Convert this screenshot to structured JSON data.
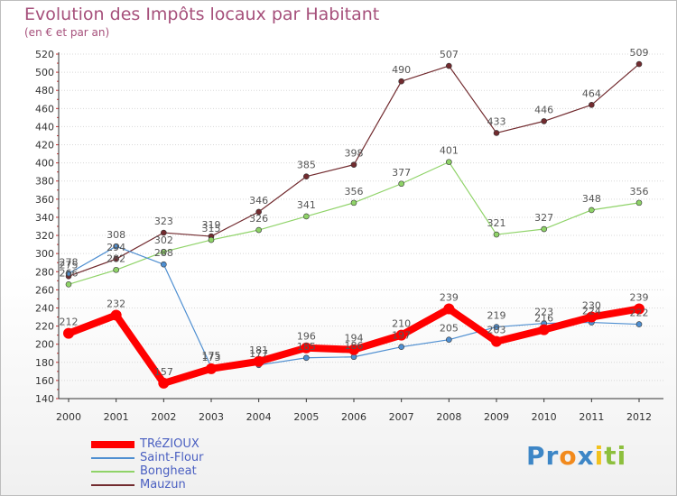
{
  "chart_data": {
    "type": "line",
    "title": "Evolution des Impôts locaux par Habitant",
    "subtitle": "(en € et par an)",
    "xlabel": "",
    "ylabel": "",
    "ylim": [
      140,
      520
    ],
    "ytick_step": 20,
    "grid": "horizontal dotted",
    "categories": [
      "2000",
      "2001",
      "2002",
      "2003",
      "2004",
      "2005",
      "2006",
      "2007",
      "2008",
      "2009",
      "2010",
      "2011",
      "2012"
    ],
    "series": [
      {
        "name": "Mauzun",
        "color": "#722b2f",
        "values": [
          275,
          294,
          323,
          319,
          346,
          385,
          398,
          490,
          507,
          433,
          446,
          464,
          509
        ]
      },
      {
        "name": "Bongheat",
        "color": "#8fd368",
        "values": [
          266,
          282,
          302,
          315,
          326,
          341,
          356,
          377,
          401,
          321,
          327,
          348,
          356
        ]
      },
      {
        "name": "Saint-Flour",
        "color": "#4f8fd1",
        "values": [
          278,
          308,
          288,
          175,
          177,
          185,
          186,
          197,
          205,
          219,
          223,
          224,
          222
        ]
      },
      {
        "name": "TRéZIOUX",
        "color": "#ff0000",
        "values": [
          212,
          232,
          157,
          173,
          181,
          196,
          194,
          210,
          239,
          203,
          216,
          230,
          239
        ]
      }
    ],
    "legend": [
      "TRéZIOUX",
      "Saint-Flour",
      "Bongheat",
      "Mauzun"
    ]
  },
  "logo": {
    "letters": [
      "P",
      "r",
      "o",
      "x",
      "i",
      "t",
      "i"
    ],
    "colors": [
      "#3d86c6",
      "#3d86c6",
      "#f28a1d",
      "#3d86c6",
      "#f2c21d",
      "#8dbf3d",
      "#8dbf3d"
    ]
  }
}
